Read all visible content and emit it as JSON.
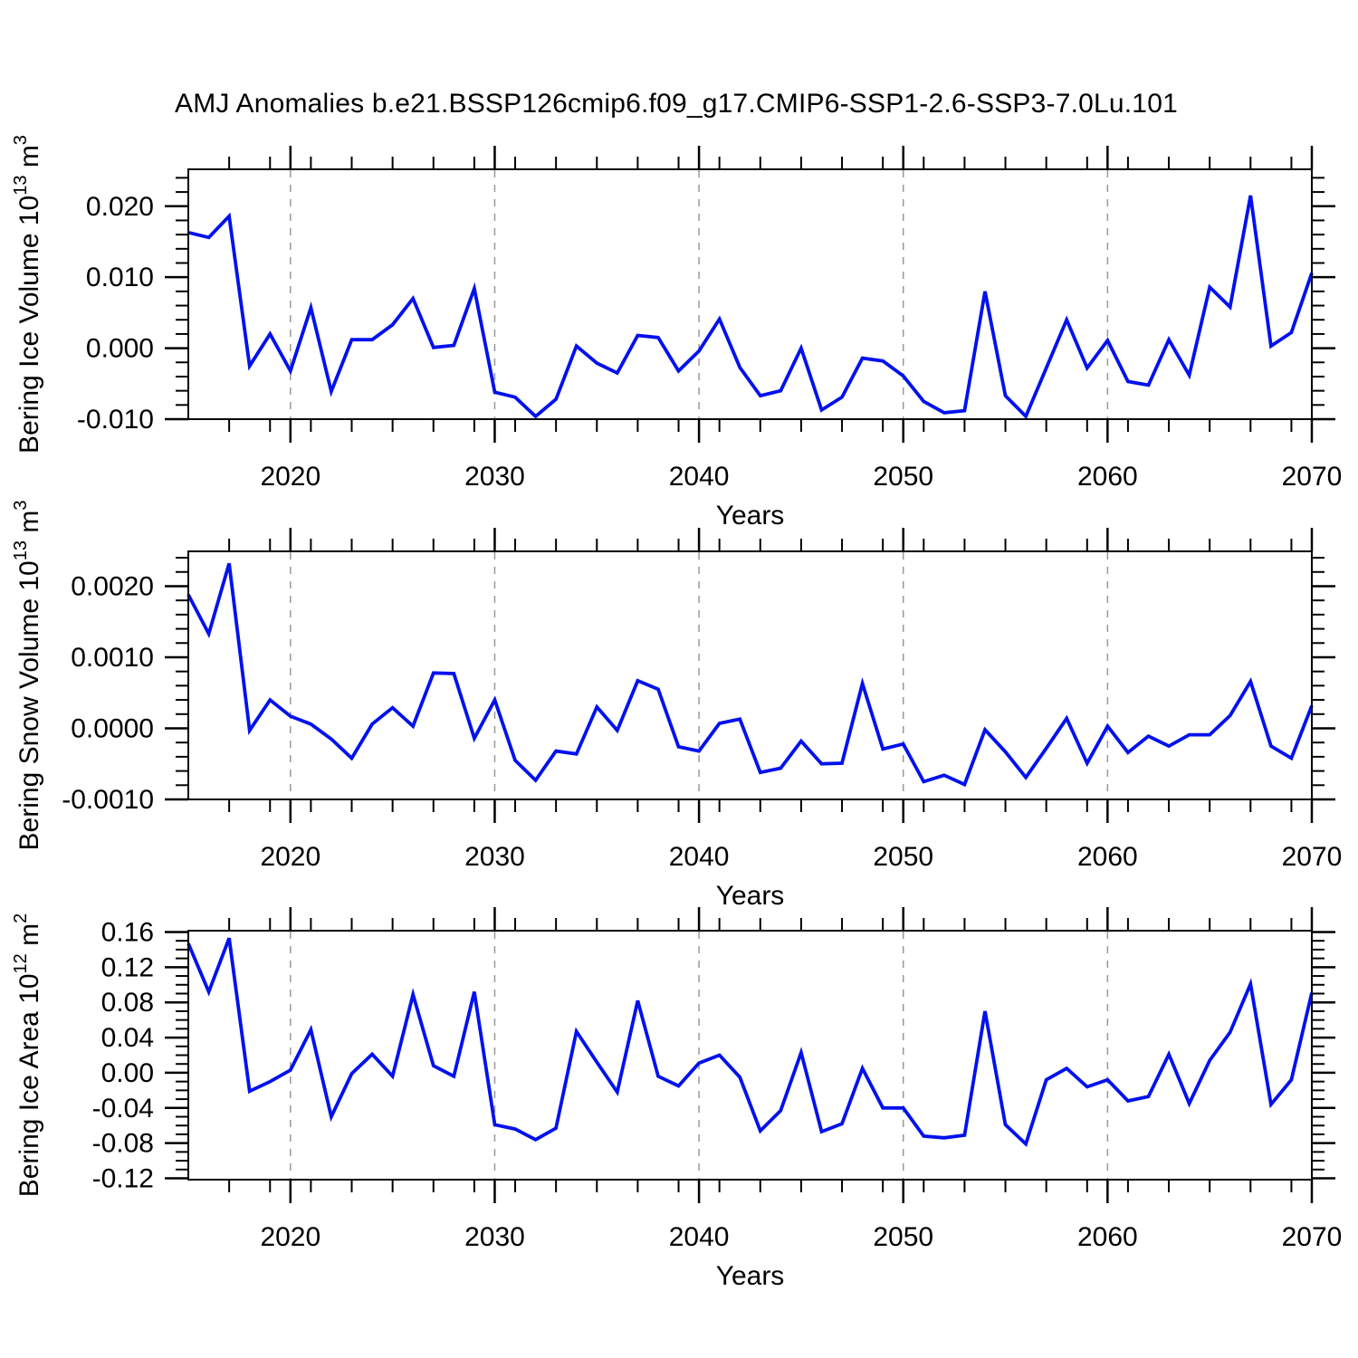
{
  "page": {
    "title": "AMJ Anomalies b.e21.BSSP126cmip6.f09_g17.CMIP6-SSP1-2.6-SSP3-7.0Lu.101"
  },
  "years": [
    2015,
    2016,
    2017,
    2018,
    2019,
    2020,
    2021,
    2022,
    2023,
    2024,
    2025,
    2026,
    2027,
    2028,
    2029,
    2030,
    2031,
    2032,
    2033,
    2034,
    2035,
    2036,
    2037,
    2038,
    2039,
    2040,
    2041,
    2042,
    2043,
    2044,
    2045,
    2046,
    2047,
    2048,
    2049,
    2050,
    2051,
    2052,
    2053,
    2054,
    2055,
    2056,
    2057,
    2058,
    2059,
    2060,
    2061,
    2062,
    2063,
    2064,
    2065,
    2066,
    2067,
    2068,
    2069,
    2070
  ],
  "chart_data": [
    {
      "id": "bering-ice-volume",
      "type": "line",
      "ylabel": {
        "prefix": "Bering Ice Volume 10",
        "exponent": "13",
        "unit": "m",
        "unit_exponent": "3"
      },
      "xlabel": "Years",
      "xlim": [
        2015,
        2070
      ],
      "ylim": [
        -0.01,
        0.0252
      ],
      "yticks": {
        "values": [
          0.02,
          0.01,
          0.0,
          -0.01
        ],
        "labels": [
          "0.020",
          "0.010",
          "0.000",
          "-0.010"
        ],
        "minor_step": 0.002
      },
      "xticks": {
        "major_values": [
          2020,
          2030,
          2040,
          2050,
          2060,
          2070
        ],
        "labels": [
          "2020",
          "2030",
          "2040",
          "2050",
          "2060",
          "2070"
        ],
        "minor_step": 2
      },
      "gridlines_x": [
        2020,
        2030,
        2040,
        2050,
        2060
      ],
      "line_color": "#0011ee",
      "values": [
        0.0163,
        0.0156,
        0.0186,
        -0.0025,
        0.002,
        -0.0032,
        0.0057,
        -0.0061,
        0.0012,
        0.0012,
        0.0033,
        0.007,
        0.0001,
        0.0004,
        0.0084,
        -0.0062,
        -0.0069,
        -0.0096,
        -0.0072,
        0.0003,
        -0.0021,
        -0.0035,
        0.0018,
        0.0015,
        -0.0032,
        -0.0004,
        0.0041,
        -0.0027,
        -0.0067,
        -0.006,
        0.0,
        -0.0087,
        -0.0069,
        -0.0014,
        -0.0018,
        -0.0039,
        -0.0075,
        -0.0091,
        -0.0088,
        0.008,
        -0.0067,
        -0.0096,
        -0.0028,
        0.004,
        -0.0028,
        0.0011,
        -0.0047,
        -0.0052,
        0.0012,
        -0.0038,
        0.0086,
        0.0058,
        0.0215,
        0.0003,
        0.0022,
        0.0106
      ]
    },
    {
      "id": "bering-snow-volume",
      "type": "line",
      "ylabel": {
        "prefix": "Bering Snow Volume 10",
        "exponent": "13",
        "unit": "m",
        "unit_exponent": "3"
      },
      "xlabel": "Years",
      "xlim": [
        2015,
        2070
      ],
      "ylim": [
        -0.001,
        0.00249
      ],
      "yticks": {
        "values": [
          0.002,
          0.001,
          0.0,
          -0.001
        ],
        "labels": [
          "0.0020",
          "0.0010",
          "0.0000",
          "-0.0010"
        ],
        "minor_step": 0.0002
      },
      "xticks": {
        "major_values": [
          2020,
          2030,
          2040,
          2050,
          2060,
          2070
        ],
        "labels": [
          "2020",
          "2030",
          "2040",
          "2050",
          "2060",
          "2070"
        ],
        "minor_step": 2
      },
      "gridlines_x": [
        2020,
        2030,
        2040,
        2050,
        2060
      ],
      "line_color": "#0011ee",
      "values": [
        0.00188,
        0.00133,
        0.00232,
        -3e-05,
        0.0004,
        0.00017,
        6e-05,
        -0.00015,
        -0.00042,
        6e-05,
        0.00029,
        3e-05,
        0.00078,
        0.00077,
        -0.00014,
        0.0004,
        -0.00045,
        -0.00073,
        -0.00032,
        -0.00036,
        0.0003,
        -3e-05,
        0.00067,
        0.00055,
        -0.00026,
        -0.00032,
        7e-05,
        0.00013,
        -0.00062,
        -0.00056,
        -0.00018,
        -0.0005,
        -0.00049,
        0.00063,
        -0.00029,
        -0.00022,
        -0.00075,
        -0.00066,
        -0.00079,
        -2e-05,
        -0.00033,
        -0.00069,
        -0.00028,
        0.00014,
        -0.00049,
        3e-05,
        -0.00034,
        -0.00011,
        -0.00025,
        -9e-05,
        -9e-05,
        0.00018,
        0.00066,
        -0.00025,
        -0.00042,
        0.00032
      ]
    },
    {
      "id": "bering-ice-area",
      "type": "line",
      "ylabel": {
        "prefix": "Bering Ice Area 10",
        "exponent": "12",
        "unit": "m",
        "unit_exponent": "2"
      },
      "xlabel": "Years",
      "xlim": [
        2015,
        2070
      ],
      "ylim": [
        -0.1215,
        0.1615
      ],
      "yticks": {
        "values": [
          0.16,
          0.12,
          0.08,
          0.04,
          0.0,
          -0.04,
          -0.08,
          -0.12
        ],
        "labels": [
          "0.16",
          "0.12",
          "0.08",
          "0.04",
          "0.00",
          "-0.04",
          "-0.08",
          "-0.12"
        ],
        "minor_step": 0.01
      },
      "xticks": {
        "major_values": [
          2020,
          2030,
          2040,
          2050,
          2060,
          2070
        ],
        "labels": [
          "2020",
          "2030",
          "2040",
          "2050",
          "2060",
          "2070"
        ],
        "minor_step": 2
      },
      "gridlines_x": [
        2020,
        2030,
        2040,
        2050,
        2060
      ],
      "line_color": "#0011ee",
      "values": [
        0.147,
        0.092,
        0.153,
        -0.021,
        -0.01,
        0.003,
        0.049,
        -0.05,
        -0.001,
        0.021,
        -0.004,
        0.089,
        0.008,
        -0.004,
        0.092,
        -0.059,
        -0.064,
        -0.076,
        -0.063,
        0.047,
        0.012,
        -0.022,
        0.082,
        -0.004,
        -0.015,
        0.011,
        0.02,
        -0.005,
        -0.066,
        -0.043,
        0.023,
        -0.067,
        -0.058,
        0.005,
        -0.04,
        -0.04,
        -0.072,
        -0.074,
        -0.071,
        0.07,
        -0.059,
        -0.081,
        -0.008,
        0.005,
        -0.016,
        -0.008,
        -0.032,
        -0.027,
        0.021,
        -0.035,
        0.014,
        0.046,
        0.101,
        -0.036,
        -0.008,
        0.091
      ]
    }
  ],
  "style": {
    "background": "#ffffff",
    "axis_color": "#000000",
    "text_color": "#000000",
    "grid_color": "#999999",
    "accent_line_color": "#0011ee"
  }
}
